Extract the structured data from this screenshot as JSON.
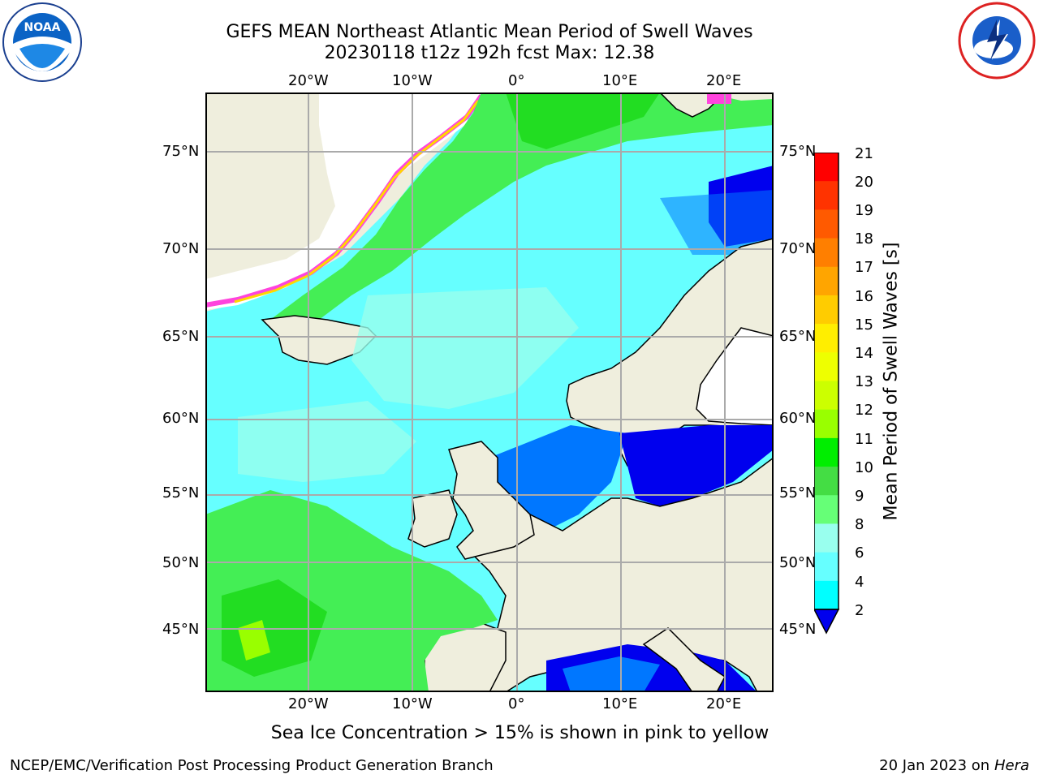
{
  "title": {
    "line1": "GEFS MEAN Northeast Atlantic Mean Period of Swell Waves",
    "line2": "20230118 t12z 192h fcst   Max: 12.38"
  },
  "axes": {
    "lon_labels": [
      "20°W",
      "10°W",
      "0°",
      "10°E",
      "20°E"
    ],
    "lat_labels": [
      "75°N",
      "70°N",
      "65°N",
      "60°N",
      "55°N",
      "50°N",
      "45°N"
    ]
  },
  "colorbar": {
    "label": "Mean Period of Swell Waves [s]",
    "ticks": [
      "21",
      "20",
      "19",
      "18",
      "17",
      "16",
      "15",
      "14",
      "13",
      "12",
      "11",
      "10",
      "9",
      "8",
      "6",
      "4",
      "2"
    ],
    "colors": [
      "#ff0000",
      "#ff3300",
      "#ff5a00",
      "#ff7f00",
      "#ffa500",
      "#ffcc00",
      "#ffee00",
      "#eeff00",
      "#ccff00",
      "#99ff00",
      "#00ee00",
      "#44dd44",
      "#66ff77",
      "#99ffee",
      "#66ffff",
      "#00ffff",
      "#0077ff"
    ],
    "extend_color": "#0000ee"
  },
  "note": "Sea Ice Concentration > 15% is shown in pink to yellow",
  "footer": {
    "left": "NCEP/EMC/Verification Post Processing Product Generation Branch",
    "right_date": "20 Jan 2023 on ",
    "right_machine": "Hera"
  },
  "logos": {
    "left_icon": "noaa-logo",
    "right_icon": "nws-logo"
  }
}
